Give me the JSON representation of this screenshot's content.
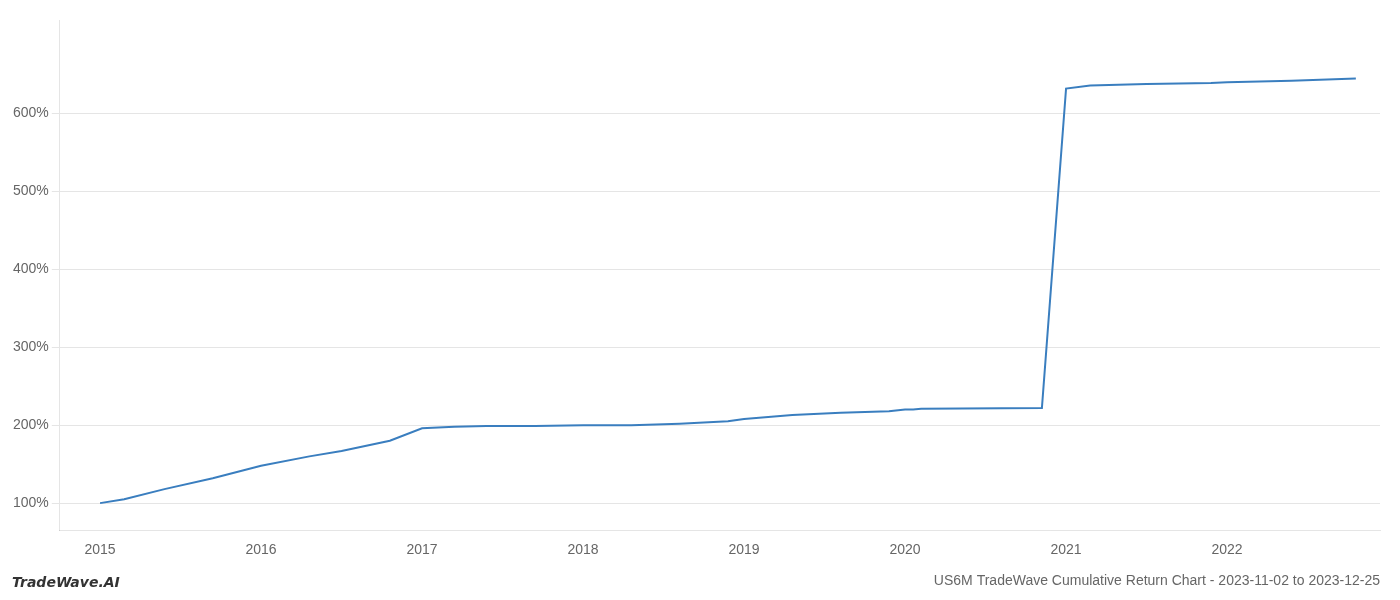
{
  "chart_data": {
    "type": "line",
    "title": "US6M TradeWave Cumulative Return Chart - 2023-11-02 to 2023-12-25",
    "annotations": [
      "TradeWave.AI"
    ],
    "x": [
      2015.0,
      2015.15,
      2015.4,
      2015.7,
      2016.0,
      2016.3,
      2016.5,
      2016.8,
      2017.0,
      2017.2,
      2017.4,
      2017.7,
      2018.0,
      2018.3,
      2018.6,
      2018.9,
      2019.0,
      2019.3,
      2019.6,
      2019.9,
      2020.0,
      2020.05,
      2020.1,
      2020.85,
      2021.0,
      2021.15,
      2021.5,
      2021.9,
      2022.0,
      2022.4,
      2022.8
    ],
    "values": [
      100,
      105,
      118,
      132,
      148,
      160,
      167,
      180,
      196,
      198,
      199,
      199,
      200,
      200,
      202,
      205,
      208,
      213,
      216,
      218,
      220,
      220,
      221,
      222,
      632,
      636,
      638,
      639,
      640,
      642,
      645
    ],
    "color": "#3a7ebf",
    "xlim": [
      2014.75,
      2022.95
    ],
    "ylim": [
      65,
      720
    ],
    "xticks": [
      2015,
      2016,
      2017,
      2018,
      2019,
      2020,
      2021,
      2022
    ],
    "yticks": [
      {
        "value": 100,
        "label": "100%"
      },
      {
        "value": 200,
        "label": "200%"
      },
      {
        "value": 300,
        "label": "300%"
      },
      {
        "value": 400,
        "label": "400%"
      },
      {
        "value": 500,
        "label": "500%"
      },
      {
        "value": 600,
        "label": "600%"
      }
    ],
    "grid": "y"
  }
}
